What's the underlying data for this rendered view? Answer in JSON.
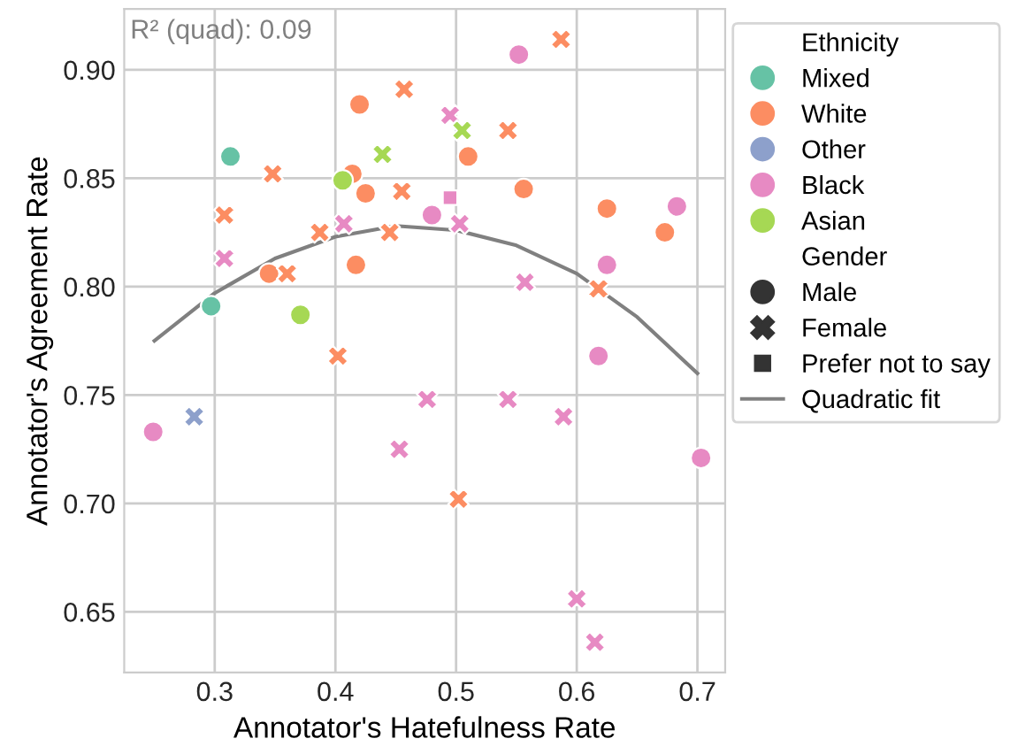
{
  "chart_data": {
    "type": "scatter",
    "xlabel": "Annotator's Hatefulness Rate",
    "ylabel": "Annotator's Agreement Rate",
    "annotations": [
      "R² (quad): 0.09"
    ],
    "xlim": [
      0.225,
      0.723
    ],
    "ylim": [
      0.622,
      0.928
    ],
    "xticks": [
      0.3,
      0.4,
      0.5,
      0.6,
      0.7
    ],
    "yticks": [
      0.65,
      {
        "value": 0.7,
        "label": "0.70"
      },
      0.75,
      {
        "value": 0.8,
        "label": "0.80"
      },
      0.85,
      {
        "value": 0.9,
        "label": "0.90"
      }
    ],
    "grid": true,
    "legend": "top right outside",
    "legend_title": "Ethnicity",
    "series": [
      {
        "name": "Mixed",
        "color": "#66c2a5",
        "marker": "circle",
        "x": [
          0.313,
          0.297
        ],
        "values": [
          0.86,
          0.791
        ]
      },
      {
        "name": "White",
        "color": "#fc8d62",
        "marker": "circle",
        "x": [
          0.42,
          0.414,
          0.425,
          0.345,
          0.417,
          0.51,
          0.556,
          0.625,
          0.673
        ],
        "values": [
          0.884,
          0.852,
          0.843,
          0.806,
          0.81,
          0.86,
          0.845,
          0.836,
          0.825
        ]
      },
      {
        "color": "#fc8d62",
        "marker": "cross",
        "x": [
          0.457,
          0.348,
          0.308,
          0.455,
          0.387,
          0.445,
          0.36,
          0.587,
          0.543,
          0.618,
          0.402,
          0.502
        ],
        "values": [
          0.891,
          0.852,
          0.833,
          0.844,
          0.825,
          0.825,
          0.806,
          0.914,
          0.872,
          0.799,
          0.768,
          0.702
        ]
      },
      {
        "name": "Other",
        "color": "#8da0cb",
        "marker": "cross",
        "x": [
          0.283
        ],
        "values": [
          0.74
        ]
      },
      {
        "name": "Black",
        "color": "#e78ac3",
        "marker": "circle",
        "x": [
          0.552,
          0.48,
          0.683,
          0.625,
          0.618,
          0.703,
          0.249
        ],
        "values": [
          0.907,
          0.833,
          0.837,
          0.81,
          0.768,
          0.721,
          0.733
        ]
      },
      {
        "color": "#e78ac3",
        "marker": "cross",
        "x": [
          0.308,
          0.407,
          0.495,
          0.503,
          0.557,
          0.476,
          0.543,
          0.589,
          0.453,
          0.6,
          0.615
        ],
        "values": [
          0.813,
          0.829,
          0.879,
          0.829,
          0.802,
          0.748,
          0.748,
          0.74,
          0.725,
          0.656,
          0.636
        ]
      },
      {
        "color": "#e78ac3",
        "marker": "square",
        "x": [
          0.495
        ],
        "values": [
          0.841
        ]
      },
      {
        "name": "Asian",
        "color": "#a6d854",
        "marker": "circle",
        "x": [
          0.406,
          0.371
        ],
        "values": [
          0.849,
          0.787
        ]
      },
      {
        "color": "#a6d854",
        "marker": "cross",
        "x": [
          0.439,
          0.505
        ],
        "values": [
          0.861,
          0.872
        ]
      },
      {
        "name": "Gender",
        "marker": "none"
      },
      {
        "name": "Male",
        "color": "#333333",
        "marker": "circle"
      },
      {
        "name": "Female",
        "color": "#333333",
        "marker": "cross"
      },
      {
        "name": "Prefer not to say",
        "color": "#333333",
        "marker": "square"
      },
      {
        "name": "Quadratic fit",
        "type": "line",
        "color": "#808080",
        "x": [
          0.25,
          0.3,
          0.35,
          0.4,
          0.45,
          0.5,
          0.55,
          0.6,
          0.65,
          0.7
        ],
        "values": [
          0.775,
          0.797,
          0.813,
          0.823,
          0.828,
          0.826,
          0.819,
          0.806,
          0.786,
          0.76
        ]
      }
    ]
  }
}
